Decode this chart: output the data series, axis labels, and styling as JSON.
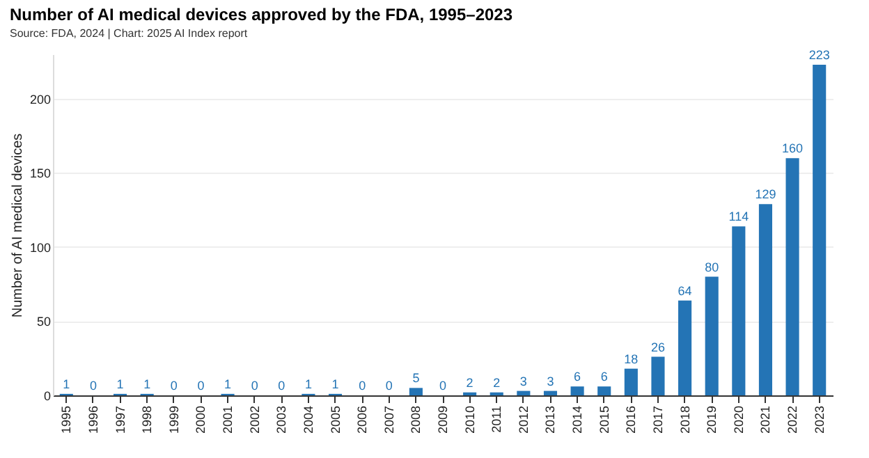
{
  "chart_data": {
    "type": "bar",
    "title": "Number of AI medical devices approved by the FDA, 1995–2023",
    "subtitle": "Source: FDA, 2024 | Chart: 2025 AI Index report",
    "ylabel": "Number of AI medical devices",
    "categories": [
      "1995",
      "1996",
      "1997",
      "1998",
      "1999",
      "2000",
      "2001",
      "2002",
      "2003",
      "2004",
      "2005",
      "2006",
      "2007",
      "2008",
      "2009",
      "2010",
      "2011",
      "2012",
      "2013",
      "2014",
      "2015",
      "2016",
      "2017",
      "2018",
      "2019",
      "2020",
      "2021",
      "2022",
      "2023"
    ],
    "values": [
      1,
      0,
      1,
      1,
      0,
      0,
      1,
      0,
      0,
      1,
      1,
      0,
      0,
      5,
      0,
      2,
      2,
      3,
      3,
      6,
      6,
      18,
      26,
      64,
      80,
      114,
      129,
      160,
      223
    ],
    "color": "#2474b5",
    "ylim": [
      0,
      230
    ],
    "yticks": [
      0,
      50,
      100,
      150,
      200
    ],
    "grid": "y",
    "data_labels": true
  }
}
